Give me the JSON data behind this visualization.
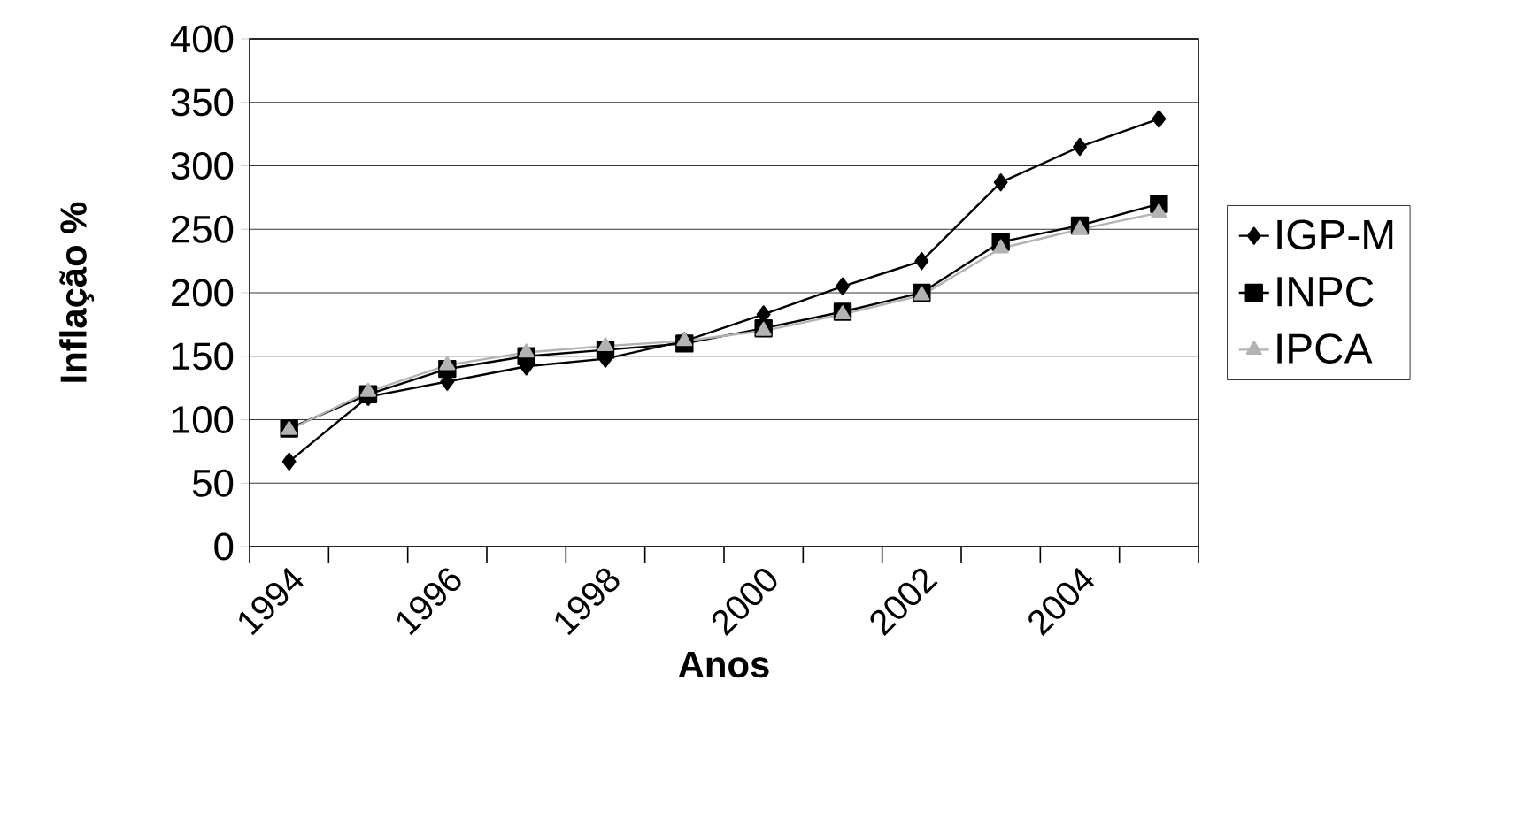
{
  "chart_data": {
    "type": "line",
    "xlabel": "Anos",
    "ylabel": "Inflação %",
    "categories": [
      "1994",
      null,
      "1996",
      null,
      "1998",
      null,
      "2000",
      null,
      "2002",
      null,
      "2004",
      null
    ],
    "series": [
      {
        "name": "IGP-M",
        "color": "#000000",
        "marker": "diamond",
        "values": [
          67,
          118,
          130,
          142,
          148,
          162,
          183,
          205,
          225,
          287,
          315,
          337
        ]
      },
      {
        "name": "INPC",
        "color": "#000000",
        "marker": "square",
        "values": [
          93,
          120,
          140,
          150,
          155,
          160,
          172,
          185,
          200,
          240,
          253,
          270
        ]
      },
      {
        "name": "IPCA",
        "color": "#b3b3b3",
        "marker": "triangle",
        "values": [
          92,
          122,
          143,
          153,
          158,
          162,
          170,
          183,
          198,
          235,
          250,
          263
        ]
      }
    ],
    "ylim": [
      0,
      400
    ],
    "yticks": [
      0,
      50,
      100,
      150,
      200,
      250,
      300,
      350,
      400
    ],
    "grid": "y",
    "legend": "right"
  }
}
